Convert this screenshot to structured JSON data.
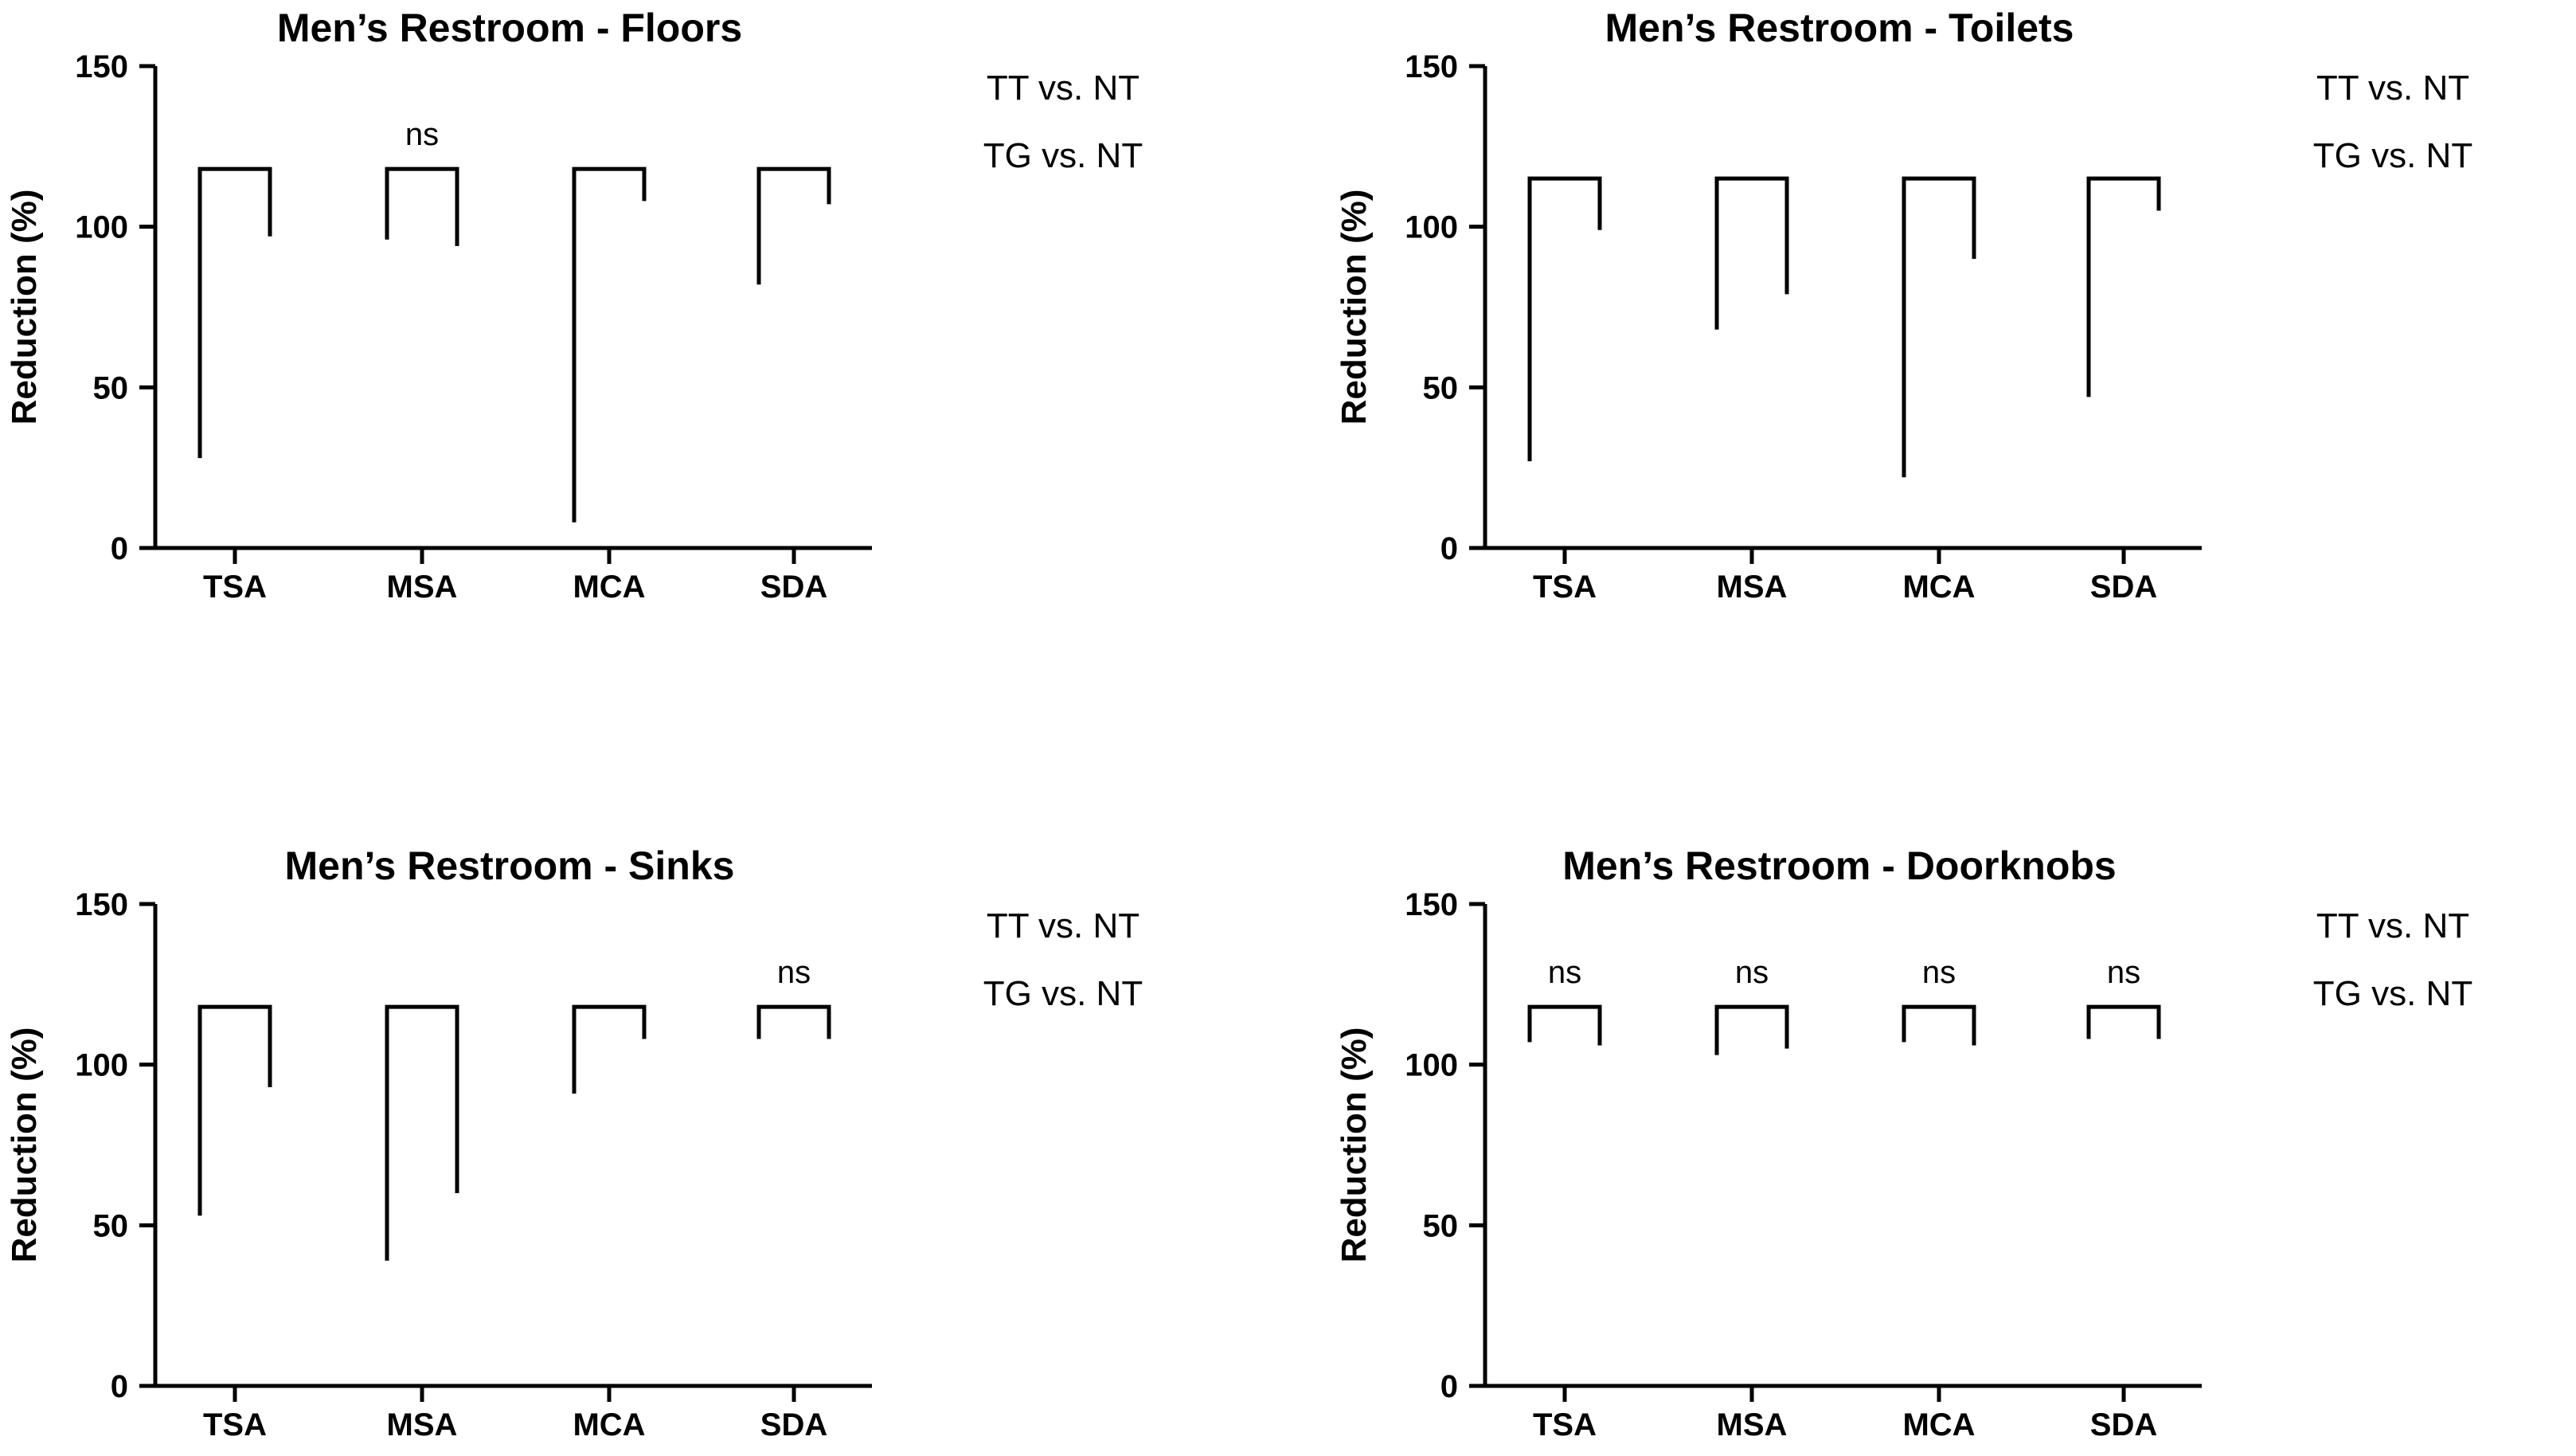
{
  "chart_data": [
    {
      "type": "bracket",
      "title": "Men’s Restroom - Floors",
      "ylabel": "Reduction (%)",
      "ylim": [
        0,
        150
      ],
      "yticks": [
        0,
        50,
        100,
        150
      ],
      "categories": [
        "TSA",
        "MSA",
        "MCA",
        "SDA"
      ],
      "legend": [
        "TT vs. NT",
        "TG vs. NT"
      ],
      "brackets": [
        {
          "category": "TSA",
          "top": 118,
          "left_end": 28,
          "right_end": 97,
          "label": ""
        },
        {
          "category": "MSA",
          "top": 118,
          "left_end": 96,
          "right_end": 94,
          "label": "ns"
        },
        {
          "category": "MCA",
          "top": 118,
          "left_end": 8,
          "right_end": 108,
          "label": ""
        },
        {
          "category": "SDA",
          "top": 118,
          "left_end": 82,
          "right_end": 107,
          "label": ""
        }
      ]
    },
    {
      "type": "bracket",
      "title": "Men’s Restroom - Toilets",
      "ylabel": "Reduction (%)",
      "ylim": [
        0,
        150
      ],
      "yticks": [
        0,
        50,
        100,
        150
      ],
      "categories": [
        "TSA",
        "MSA",
        "MCA",
        "SDA"
      ],
      "legend": [
        "TT vs. NT",
        "TG vs. NT"
      ],
      "brackets": [
        {
          "category": "TSA",
          "top": 115,
          "left_end": 27,
          "right_end": 99,
          "label": ""
        },
        {
          "category": "MSA",
          "top": 115,
          "left_end": 68,
          "right_end": 79,
          "label": ""
        },
        {
          "category": "MCA",
          "top": 115,
          "left_end": 22,
          "right_end": 90,
          "label": ""
        },
        {
          "category": "SDA",
          "top": 115,
          "left_end": 47,
          "right_end": 105,
          "label": ""
        }
      ]
    },
    {
      "type": "bracket",
      "title": "Men’s Restroom - Sinks",
      "ylabel": "Reduction (%)",
      "ylim": [
        0,
        150
      ],
      "yticks": [
        0,
        50,
        100,
        150
      ],
      "categories": [
        "TSA",
        "MSA",
        "MCA",
        "SDA"
      ],
      "legend": [
        "TT vs. NT",
        "TG vs. NT"
      ],
      "brackets": [
        {
          "category": "TSA",
          "top": 118,
          "left_end": 53,
          "right_end": 93,
          "label": ""
        },
        {
          "category": "MSA",
          "top": 118,
          "left_end": 39,
          "right_end": 60,
          "label": ""
        },
        {
          "category": "MCA",
          "top": 118,
          "left_end": 91,
          "right_end": 108,
          "label": ""
        },
        {
          "category": "SDA",
          "top": 118,
          "left_end": 108,
          "right_end": 108,
          "label": "ns"
        }
      ]
    },
    {
      "type": "bracket",
      "title": "Men’s Restroom - Doorknobs",
      "ylabel": "Reduction (%)",
      "ylim": [
        0,
        150
      ],
      "yticks": [
        0,
        50,
        100,
        150
      ],
      "categories": [
        "TSA",
        "MSA",
        "MCA",
        "SDA"
      ],
      "legend": [
        "TT vs. NT",
        "TG vs. NT"
      ],
      "brackets": [
        {
          "category": "TSA",
          "top": 118,
          "left_end": 107,
          "right_end": 106,
          "label": "ns"
        },
        {
          "category": "MSA",
          "top": 118,
          "left_end": 103,
          "right_end": 105,
          "label": "ns"
        },
        {
          "category": "MCA",
          "top": 118,
          "left_end": 107,
          "right_end": 106,
          "label": "ns"
        },
        {
          "category": "SDA",
          "top": 118,
          "left_end": 108,
          "right_end": 108,
          "label": "ns"
        }
      ]
    }
  ]
}
